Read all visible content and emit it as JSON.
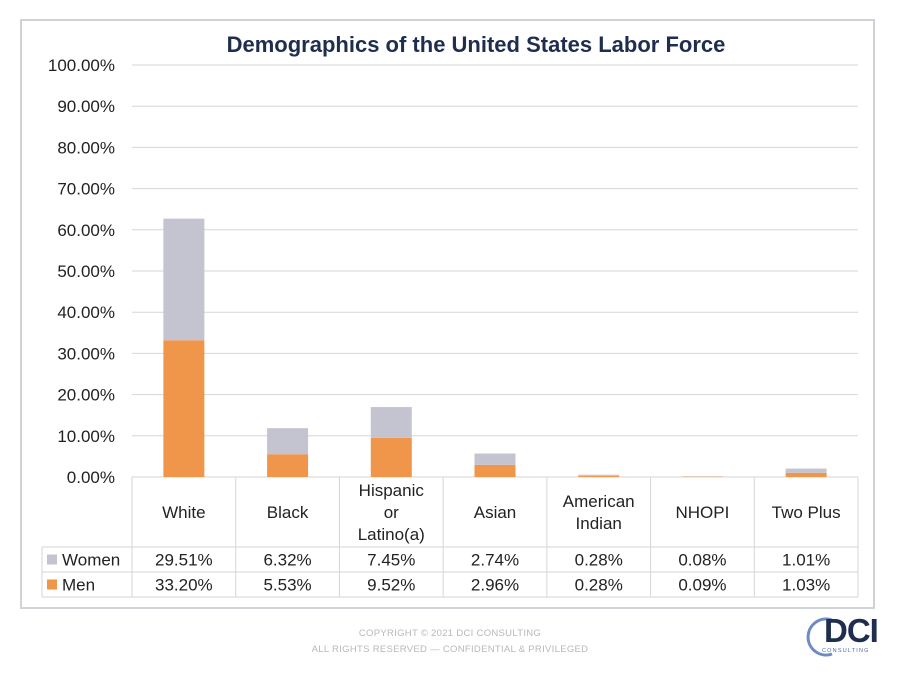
{
  "chart_data": {
    "type": "bar",
    "stacked": true,
    "title": "Demographics of the United States Labor Force",
    "categories": [
      [
        "White"
      ],
      [
        "Black"
      ],
      [
        "Hispanic",
        "or",
        "Latino(a)"
      ],
      [
        "Asian"
      ],
      [
        "American",
        "Indian"
      ],
      [
        "NHOPI"
      ],
      [
        "Two Plus"
      ]
    ],
    "series": [
      {
        "name": "Men",
        "values": [
          33.2,
          5.53,
          9.52,
          2.96,
          0.28,
          0.09,
          1.03
        ],
        "color": "#f0964a"
      },
      {
        "name": "Women",
        "values": [
          29.51,
          6.32,
          7.45,
          2.74,
          0.28,
          0.08,
          1.01
        ],
        "color": "#c3c4d0"
      }
    ],
    "table_rows": [
      {
        "name": "Women",
        "values": [
          "29.51%",
          "6.32%",
          "7.45%",
          "2.74%",
          "0.28%",
          "0.08%",
          "1.01%"
        ],
        "color": "#c3c4d0"
      },
      {
        "name": "Men",
        "values": [
          "33.20%",
          "5.53%",
          "9.52%",
          "2.96%",
          "0.28%",
          "0.09%",
          "1.03%"
        ],
        "color": "#f0964a"
      }
    ],
    "y_ticks": [
      "0.00%",
      "10.00%",
      "20.00%",
      "30.00%",
      "40.00%",
      "50.00%",
      "60.00%",
      "70.00%",
      "80.00%",
      "90.00%",
      "100.00%"
    ],
    "ylim": [
      0,
      100
    ],
    "grid": true,
    "legend": "data-table"
  },
  "footer": {
    "line1": "COPYRIGHT © 2021 DCI CONSULTING",
    "line2": "ALL RIGHTS RESERVED — CONFIDENTIAL & PRIVILEGED"
  },
  "logo": {
    "text": "DCI",
    "subtext": "CONSULTING"
  }
}
